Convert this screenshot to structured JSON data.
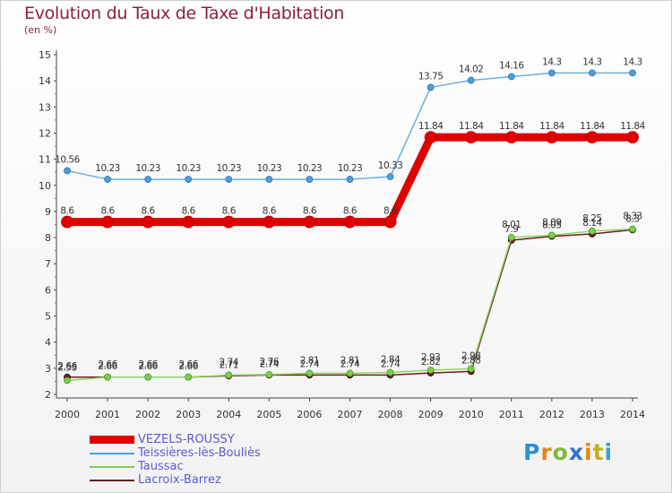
{
  "chart_data": {
    "type": "line",
    "title": "Evolution du Taux de Taxe d'Habitation",
    "ylabel": "(en %)",
    "xlabel": "",
    "ylim": [
      2,
      15
    ],
    "yticks": [
      "2",
      "3",
      "4",
      "5",
      "6",
      "7",
      "8",
      "9",
      "10",
      "11",
      "12",
      "13",
      "14",
      "15"
    ],
    "categories": [
      "2000",
      "2001",
      "2002",
      "2003",
      "2004",
      "2005",
      "2006",
      "2007",
      "2008",
      "2009",
      "2010",
      "2011",
      "2012",
      "2013",
      "2014"
    ],
    "grid": false,
    "legend_position": "bottom-left",
    "series": [
      {
        "name": "VEZELS-ROUSSY",
        "color": "#e00000",
        "values": [
          8.6,
          8.6,
          8.6,
          8.6,
          8.6,
          8.6,
          8.6,
          8.6,
          8.6,
          11.84,
          11.84,
          11.84,
          11.84,
          11.84,
          11.84
        ],
        "labels": [
          "8.6",
          "8.6",
          "8.6",
          "8.6",
          "8.6",
          "8.6",
          "8.6",
          "8.6",
          "8.6",
          "11.84",
          "11.84",
          "11.84",
          "11.84",
          "11.84",
          "11.84"
        ]
      },
      {
        "name": "Teissières-lès-Bouliès",
        "color": "#4d9ed8",
        "values": [
          10.56,
          10.23,
          10.23,
          10.23,
          10.23,
          10.23,
          10.23,
          10.23,
          10.33,
          13.75,
          14.02,
          14.16,
          14.3,
          14.3,
          14.3
        ],
        "labels": [
          "10.56",
          "10.23",
          "10.23",
          "10.23",
          "10.23",
          "10.23",
          "10.23",
          "10.23",
          "10.33",
          "13.75",
          "14.02",
          "14.16",
          "14.3",
          "14.3",
          "14.3"
        ]
      },
      {
        "name": "Taussac",
        "color": "#79d14a",
        "values": [
          2.53,
          2.66,
          2.66,
          2.66,
          2.74,
          2.76,
          2.81,
          2.81,
          2.84,
          2.93,
          2.98,
          8.01,
          8.09,
          8.25,
          8.33
        ],
        "labels": [
          "2.53",
          "2.66",
          "2.66",
          "2.66",
          "2.74",
          "2.76",
          "2.81",
          "2.81",
          "2.84",
          "2.93",
          "2.98",
          "8.01",
          "8.09",
          "8.25",
          "8.33"
        ]
      },
      {
        "name": "Lacroix-Barrez",
        "color": "#6b1e1e",
        "values": [
          2.66,
          2.66,
          2.66,
          2.66,
          2.71,
          2.74,
          2.74,
          2.74,
          2.74,
          2.82,
          2.88,
          7.9,
          8.05,
          8.14,
          8.3
        ],
        "labels": [
          "2.66",
          "2.66",
          "2.66",
          "2.66",
          "2.71",
          "2.74",
          "2.74",
          "2.74",
          "2.74",
          "2.82",
          "2.88",
          "7.9",
          "8.05",
          "8.14",
          "8.3"
        ]
      }
    ]
  },
  "logo": {
    "p": "P",
    "r": "r",
    "o": "o",
    "x": "x",
    "i": "i",
    "t": "t",
    "i2": "i"
  }
}
